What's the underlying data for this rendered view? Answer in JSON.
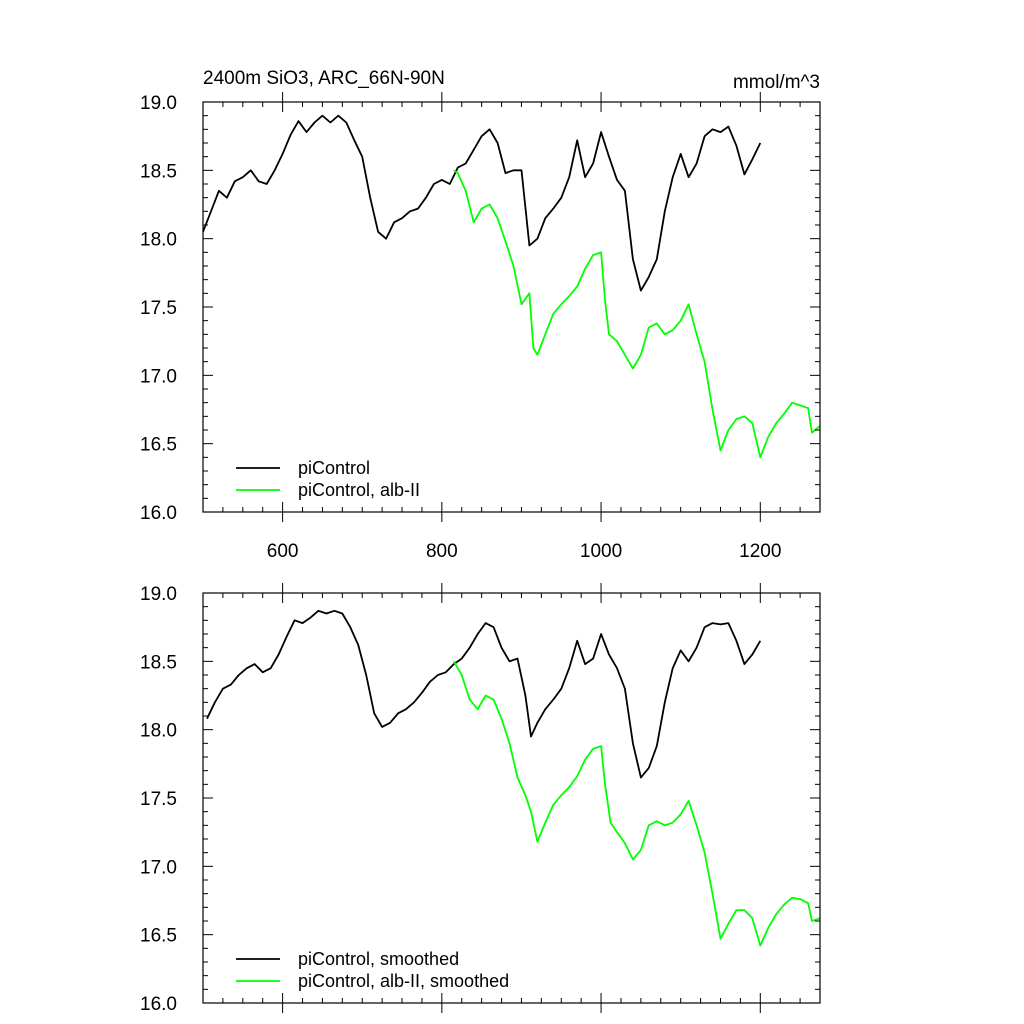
{
  "chart_data": [
    {
      "type": "line",
      "title": "2400m SiO3, ARC_66N-90N",
      "units": "mmol/m^3",
      "xlim": [
        500,
        1275
      ],
      "ylim": [
        16.0,
        19.0
      ],
      "xticks": [
        600,
        800,
        1000,
        1200
      ],
      "yticks": [
        16.0,
        16.5,
        17.0,
        17.5,
        18.0,
        18.5,
        19.0
      ],
      "xtick_labels": [
        "600",
        "800",
        "1000",
        "1200"
      ],
      "ytick_labels": [
        "16.0",
        "16.5",
        "17.0",
        "17.5",
        "18.0",
        "18.5",
        "19.0"
      ],
      "grid": false,
      "legend_position": "bottom-left",
      "series": [
        {
          "name": "piControl",
          "color": "#000000",
          "points": [
            [
              500,
              18.05
            ],
            [
              510,
              18.2
            ],
            [
              520,
              18.35
            ],
            [
              530,
              18.3
            ],
            [
              540,
              18.42
            ],
            [
              550,
              18.45
            ],
            [
              560,
              18.5
            ],
            [
              570,
              18.42
            ],
            [
              580,
              18.4
            ],
            [
              590,
              18.5
            ],
            [
              600,
              18.62
            ],
            [
              610,
              18.76
            ],
            [
              620,
              18.86
            ],
            [
              630,
              18.78
            ],
            [
              640,
              18.85
            ],
            [
              650,
              18.9
            ],
            [
              660,
              18.85
            ],
            [
              670,
              18.9
            ],
            [
              680,
              18.85
            ],
            [
              690,
              18.72
            ],
            [
              700,
              18.6
            ],
            [
              710,
              18.3
            ],
            [
              720,
              18.05
            ],
            [
              730,
              18.0
            ],
            [
              740,
              18.12
            ],
            [
              750,
              18.15
            ],
            [
              760,
              18.2
            ],
            [
              770,
              18.22
            ],
            [
              780,
              18.3
            ],
            [
              790,
              18.4
            ],
            [
              800,
              18.43
            ],
            [
              810,
              18.4
            ],
            [
              820,
              18.52
            ],
            [
              830,
              18.55
            ],
            [
              840,
              18.65
            ],
            [
              850,
              18.75
            ],
            [
              860,
              18.8
            ],
            [
              870,
              18.7
            ],
            [
              880,
              18.48
            ],
            [
              890,
              18.5
            ],
            [
              900,
              18.5
            ],
            [
              910,
              17.95
            ],
            [
              920,
              18.0
            ],
            [
              930,
              18.15
            ],
            [
              940,
              18.22
            ],
            [
              950,
              18.3
            ],
            [
              960,
              18.45
            ],
            [
              970,
              18.72
            ],
            [
              980,
              18.45
            ],
            [
              990,
              18.55
            ],
            [
              1000,
              18.78
            ],
            [
              1010,
              18.6
            ],
            [
              1020,
              18.43
            ],
            [
              1030,
              18.35
            ],
            [
              1040,
              17.85
            ],
            [
              1050,
              17.62
            ],
            [
              1060,
              17.72
            ],
            [
              1070,
              17.85
            ],
            [
              1080,
              18.2
            ],
            [
              1090,
              18.45
            ],
            [
              1100,
              18.62
            ],
            [
              1110,
              18.45
            ],
            [
              1120,
              18.55
            ],
            [
              1130,
              18.75
            ],
            [
              1140,
              18.8
            ],
            [
              1150,
              18.78
            ],
            [
              1160,
              18.82
            ],
            [
              1170,
              18.68
            ],
            [
              1180,
              18.47
            ],
            [
              1190,
              18.58
            ],
            [
              1200,
              18.7
            ]
          ]
        },
        {
          "name": "piControl, alb-II",
          "color": "#00ff00",
          "points": [
            [
              815,
              18.5
            ],
            [
              820,
              18.48
            ],
            [
              830,
              18.35
            ],
            [
              840,
              18.12
            ],
            [
              850,
              18.22
            ],
            [
              860,
              18.25
            ],
            [
              870,
              18.15
            ],
            [
              880,
              17.98
            ],
            [
              890,
              17.8
            ],
            [
              900,
              17.52
            ],
            [
              910,
              17.6
            ],
            [
              915,
              17.2
            ],
            [
              920,
              17.15
            ],
            [
              930,
              17.3
            ],
            [
              940,
              17.45
            ],
            [
              950,
              17.52
            ],
            [
              960,
              17.58
            ],
            [
              970,
              17.65
            ],
            [
              980,
              17.78
            ],
            [
              990,
              17.88
            ],
            [
              1000,
              17.9
            ],
            [
              1005,
              17.55
            ],
            [
              1010,
              17.3
            ],
            [
              1020,
              17.25
            ],
            [
              1030,
              17.15
            ],
            [
              1040,
              17.05
            ],
            [
              1050,
              17.15
            ],
            [
              1060,
              17.35
            ],
            [
              1070,
              17.38
            ],
            [
              1080,
              17.3
            ],
            [
              1090,
              17.33
            ],
            [
              1100,
              17.4
            ],
            [
              1110,
              17.52
            ],
            [
              1120,
              17.3
            ],
            [
              1130,
              17.1
            ],
            [
              1140,
              16.75
            ],
            [
              1150,
              16.45
            ],
            [
              1160,
              16.6
            ],
            [
              1170,
              16.68
            ],
            [
              1180,
              16.7
            ],
            [
              1190,
              16.65
            ],
            [
              1200,
              16.4
            ],
            [
              1210,
              16.55
            ],
            [
              1220,
              16.65
            ],
            [
              1230,
              16.72
            ],
            [
              1240,
              16.8
            ],
            [
              1250,
              16.78
            ],
            [
              1260,
              16.76
            ],
            [
              1265,
              16.58
            ],
            [
              1275,
              16.63
            ]
          ]
        }
      ]
    },
    {
      "type": "line",
      "xlim": [
        500,
        1275
      ],
      "ylim": [
        16.0,
        19.0
      ],
      "xticks": [
        600,
        800,
        1000,
        1200
      ],
      "yticks": [
        16.0,
        16.5,
        17.0,
        17.5,
        18.0,
        18.5,
        19.0
      ],
      "ytick_labels": [
        "16.0",
        "16.5",
        "17.0",
        "17.5",
        "18.0",
        "18.5",
        "19.0"
      ],
      "grid": false,
      "legend_position": "bottom-left",
      "series": [
        {
          "name": "piControl, smoothed",
          "color": "#000000",
          "points": [
            [
              505,
              18.08
            ],
            [
              515,
              18.2
            ],
            [
              525,
              18.3
            ],
            [
              535,
              18.33
            ],
            [
              545,
              18.4
            ],
            [
              555,
              18.45
            ],
            [
              565,
              18.48
            ],
            [
              575,
              18.42
            ],
            [
              585,
              18.45
            ],
            [
              595,
              18.55
            ],
            [
              605,
              18.68
            ],
            [
              615,
              18.8
            ],
            [
              625,
              18.78
            ],
            [
              635,
              18.82
            ],
            [
              645,
              18.87
            ],
            [
              655,
              18.85
            ],
            [
              665,
              18.87
            ],
            [
              675,
              18.85
            ],
            [
              685,
              18.75
            ],
            [
              695,
              18.62
            ],
            [
              705,
              18.4
            ],
            [
              715,
              18.12
            ],
            [
              725,
              18.02
            ],
            [
              735,
              18.05
            ],
            [
              745,
              18.12
            ],
            [
              755,
              18.15
            ],
            [
              765,
              18.2
            ],
            [
              775,
              18.27
            ],
            [
              785,
              18.35
            ],
            [
              795,
              18.4
            ],
            [
              805,
              18.42
            ],
            [
              815,
              18.48
            ],
            [
              825,
              18.52
            ],
            [
              835,
              18.6
            ],
            [
              845,
              18.7
            ],
            [
              855,
              18.78
            ],
            [
              865,
              18.75
            ],
            [
              875,
              18.6
            ],
            [
              885,
              18.5
            ],
            [
              895,
              18.52
            ],
            [
              905,
              18.25
            ],
            [
              912,
              17.95
            ],
            [
              920,
              18.05
            ],
            [
              930,
              18.15
            ],
            [
              940,
              18.22
            ],
            [
              950,
              18.3
            ],
            [
              960,
              18.45
            ],
            [
              970,
              18.65
            ],
            [
              980,
              18.48
            ],
            [
              990,
              18.52
            ],
            [
              1000,
              18.7
            ],
            [
              1010,
              18.55
            ],
            [
              1020,
              18.45
            ],
            [
              1030,
              18.3
            ],
            [
              1040,
              17.9
            ],
            [
              1050,
              17.65
            ],
            [
              1060,
              17.72
            ],
            [
              1070,
              17.88
            ],
            [
              1080,
              18.2
            ],
            [
              1090,
              18.45
            ],
            [
              1100,
              18.58
            ],
            [
              1110,
              18.5
            ],
            [
              1120,
              18.6
            ],
            [
              1130,
              18.75
            ],
            [
              1140,
              18.78
            ],
            [
              1150,
              18.77
            ],
            [
              1160,
              18.78
            ],
            [
              1170,
              18.65
            ],
            [
              1180,
              18.48
            ],
            [
              1190,
              18.55
            ],
            [
              1200,
              18.65
            ]
          ]
        },
        {
          "name": "piControl, alb-II, smoothed",
          "color": "#00ff00",
          "points": [
            [
              815,
              18.5
            ],
            [
              825,
              18.4
            ],
            [
              835,
              18.22
            ],
            [
              845,
              18.15
            ],
            [
              855,
              18.25
            ],
            [
              865,
              18.22
            ],
            [
              875,
              18.08
            ],
            [
              885,
              17.9
            ],
            [
              895,
              17.65
            ],
            [
              905,
              17.52
            ],
            [
              912,
              17.4
            ],
            [
              920,
              17.18
            ],
            [
              930,
              17.32
            ],
            [
              940,
              17.45
            ],
            [
              950,
              17.52
            ],
            [
              960,
              17.58
            ],
            [
              970,
              17.66
            ],
            [
              980,
              17.78
            ],
            [
              990,
              17.86
            ],
            [
              1000,
              17.88
            ],
            [
              1005,
              17.6
            ],
            [
              1012,
              17.32
            ],
            [
              1020,
              17.25
            ],
            [
              1030,
              17.17
            ],
            [
              1040,
              17.05
            ],
            [
              1050,
              17.12
            ],
            [
              1060,
              17.3
            ],
            [
              1070,
              17.33
            ],
            [
              1080,
              17.3
            ],
            [
              1090,
              17.32
            ],
            [
              1100,
              17.38
            ],
            [
              1110,
              17.48
            ],
            [
              1120,
              17.3
            ],
            [
              1130,
              17.1
            ],
            [
              1140,
              16.8
            ],
            [
              1150,
              16.47
            ],
            [
              1160,
              16.58
            ],
            [
              1170,
              16.68
            ],
            [
              1180,
              16.68
            ],
            [
              1190,
              16.62
            ],
            [
              1200,
              16.42
            ],
            [
              1210,
              16.55
            ],
            [
              1220,
              16.65
            ],
            [
              1230,
              16.72
            ],
            [
              1240,
              16.77
            ],
            [
              1250,
              16.76
            ],
            [
              1260,
              16.73
            ],
            [
              1265,
              16.6
            ],
            [
              1275,
              16.62
            ]
          ]
        }
      ]
    }
  ]
}
